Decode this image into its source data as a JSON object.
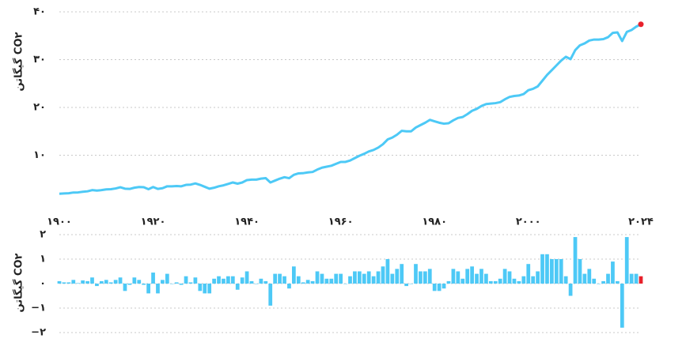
{
  "chart_data": [
    {
      "type": "line",
      "y_label": "گیگاتن CO۲",
      "color": "#4dc9f6",
      "end_marker_color": "#e8212b",
      "grid": true,
      "xlim": [
        1900,
        2024
      ],
      "ylim": [
        0,
        40
      ],
      "yticks": [
        {
          "value": 10,
          "label": "۱۰"
        },
        {
          "value": 20,
          "label": "۲۰"
        },
        {
          "value": 30,
          "label": "۳۰"
        },
        {
          "value": 40,
          "label": "۴۰"
        }
      ],
      "xticks": [
        {
          "value": 1900,
          "label": "۱۹۰۰"
        },
        {
          "value": 1920,
          "label": "۱۹۲۰"
        },
        {
          "value": 1940,
          "label": "۱۹۴۰"
        },
        {
          "value": 1960,
          "label": "۱۹۶۰"
        },
        {
          "value": 1980,
          "label": "۱۹۸۰"
        },
        {
          "value": 2000,
          "label": "۲۰۰۰"
        },
        {
          "value": 2024,
          "label": "۲۰۲۴"
        }
      ],
      "x": [
        1900,
        1901,
        1902,
        1903,
        1904,
        1905,
        1906,
        1907,
        1908,
        1909,
        1910,
        1911,
        1912,
        1913,
        1914,
        1915,
        1916,
        1917,
        1918,
        1919,
        1920,
        1921,
        1922,
        1923,
        1924,
        1925,
        1926,
        1927,
        1928,
        1929,
        1930,
        1931,
        1932,
        1933,
        1934,
        1935,
        1936,
        1937,
        1938,
        1939,
        1940,
        1941,
        1942,
        1943,
        1944,
        1945,
        1946,
        1947,
        1948,
        1949,
        1950,
        1951,
        1952,
        1953,
        1954,
        1955,
        1956,
        1957,
        1958,
        1959,
        1960,
        1961,
        1962,
        1963,
        1964,
        1965,
        1966,
        1967,
        1968,
        1969,
        1970,
        1971,
        1972,
        1973,
        1974,
        1975,
        1976,
        1977,
        1978,
        1979,
        1980,
        1981,
        1982,
        1983,
        1984,
        1985,
        1986,
        1987,
        1988,
        1989,
        1990,
        1991,
        1992,
        1993,
        1994,
        1995,
        1996,
        1997,
        1998,
        1999,
        2000,
        2001,
        2002,
        2003,
        2004,
        2005,
        2006,
        2007,
        2008,
        2009,
        2010,
        2011,
        2012,
        2013,
        2014,
        2015,
        2016,
        2017,
        2018,
        2019,
        2020,
        2021,
        2022,
        2023,
        2024
      ],
      "values": [
        1.95,
        2.0,
        2.05,
        2.2,
        2.22,
        2.35,
        2.45,
        2.7,
        2.6,
        2.7,
        2.85,
        2.9,
        3.05,
        3.3,
        3.0,
        2.95,
        3.2,
        3.35,
        3.3,
        2.9,
        3.35,
        2.95,
        3.1,
        3.5,
        3.5,
        3.55,
        3.5,
        3.8,
        3.85,
        4.1,
        3.8,
        3.4,
        3.0,
        3.2,
        3.5,
        3.7,
        4.0,
        4.3,
        4.05,
        4.3,
        4.8,
        4.9,
        4.9,
        5.1,
        5.2,
        4.3,
        4.7,
        5.1,
        5.4,
        5.2,
        5.9,
        6.2,
        6.25,
        6.4,
        6.5,
        7.0,
        7.4,
        7.6,
        7.8,
        8.2,
        8.6,
        8.6,
        8.9,
        9.4,
        9.9,
        10.3,
        10.8,
        11.1,
        11.6,
        12.3,
        13.3,
        13.7,
        14.3,
        15.1,
        15.0,
        15.0,
        15.8,
        16.3,
        16.8,
        17.4,
        17.1,
        16.8,
        16.6,
        16.7,
        17.3,
        17.8,
        18.0,
        18.6,
        19.3,
        19.7,
        20.3,
        20.7,
        20.8,
        20.9,
        21.1,
        21.7,
        22.2,
        22.4,
        22.5,
        22.8,
        23.6,
        23.9,
        24.4,
        25.6,
        26.8,
        27.8,
        28.8,
        29.8,
        30.6,
        30.1,
        32.0,
        33.0,
        33.4,
        34.0,
        34.2,
        34.2,
        34.3,
        34.7,
        35.6,
        35.7,
        33.9,
        35.8,
        36.2,
        36.9,
        37.4
      ]
    },
    {
      "type": "bar",
      "y_label": "گیگاتن CO۲",
      "color": "#4dc9f6",
      "highlight_color": "#e8212b",
      "grid": true,
      "xlim": [
        1900,
        2024
      ],
      "ylim": [
        -2,
        2
      ],
      "yticks": [
        {
          "value": -2,
          "label": "−۲"
        },
        {
          "value": -1,
          "label": "−۱"
        },
        {
          "value": 0,
          "label": "۰"
        },
        {
          "value": 1,
          "label": "۱"
        },
        {
          "value": 2,
          "label": "۲"
        }
      ],
      "x": [
        1900,
        1901,
        1902,
        1903,
        1904,
        1905,
        1906,
        1907,
        1908,
        1909,
        1910,
        1911,
        1912,
        1913,
        1914,
        1915,
        1916,
        1917,
        1918,
        1919,
        1920,
        1921,
        1922,
        1923,
        1924,
        1925,
        1926,
        1927,
        1928,
        1929,
        1930,
        1931,
        1932,
        1933,
        1934,
        1935,
        1936,
        1937,
        1938,
        1939,
        1940,
        1941,
        1942,
        1943,
        1944,
        1945,
        1946,
        1947,
        1948,
        1949,
        1950,
        1951,
        1952,
        1953,
        1954,
        1955,
        1956,
        1957,
        1958,
        1959,
        1960,
        1961,
        1962,
        1963,
        1964,
        1965,
        1966,
        1967,
        1968,
        1969,
        1970,
        1971,
        1972,
        1973,
        1974,
        1975,
        1976,
        1977,
        1978,
        1979,
        1980,
        1981,
        1982,
        1983,
        1984,
        1985,
        1986,
        1987,
        1988,
        1989,
        1990,
        1991,
        1992,
        1993,
        1994,
        1995,
        1996,
        1997,
        1998,
        1999,
        2000,
        2001,
        2002,
        2003,
        2004,
        2005,
        2006,
        2007,
        2008,
        2009,
        2010,
        2011,
        2012,
        2013,
        2014,
        2015,
        2016,
        2017,
        2018,
        2019,
        2020,
        2021,
        2022,
        2023,
        2024
      ],
      "values": [
        0.1,
        0.05,
        0.05,
        0.15,
        0.02,
        0.13,
        0.1,
        0.25,
        -0.1,
        0.1,
        0.15,
        0.05,
        0.15,
        0.25,
        -0.3,
        -0.05,
        0.25,
        0.15,
        -0.05,
        -0.4,
        0.45,
        -0.4,
        0.15,
        0.4,
        0,
        0.05,
        -0.05,
        0.3,
        0.05,
        0.25,
        -0.3,
        -0.4,
        -0.4,
        0.2,
        0.3,
        0.2,
        0.3,
        0.3,
        -0.25,
        0.25,
        0.5,
        0.1,
        0,
        0.2,
        0.1,
        -0.9,
        0.4,
        0.4,
        0.3,
        -0.2,
        0.7,
        0.3,
        0.05,
        0.15,
        0.1,
        0.5,
        0.4,
        0.2,
        0.2,
        0.4,
        0.4,
        0,
        0.3,
        0.5,
        0.5,
        0.4,
        0.5,
        0.3,
        0.5,
        0.7,
        1.0,
        0.4,
        0.6,
        0.8,
        -0.1,
        0,
        0.8,
        0.5,
        0.5,
        0.6,
        -0.3,
        -0.3,
        -0.2,
        0.1,
        0.6,
        0.5,
        0.2,
        0.6,
        0.7,
        0.4,
        0.6,
        0.4,
        0.1,
        0.1,
        0.2,
        0.6,
        0.5,
        0.2,
        0.1,
        0.3,
        0.8,
        0.3,
        0.5,
        1.2,
        1.2,
        1.0,
        1.0,
        1.0,
        0.3,
        -0.5,
        1.9,
        1.0,
        0.4,
        0.6,
        0.2,
        0,
        0.1,
        0.4,
        0.9,
        0.1,
        -1.8,
        1.9,
        0.4,
        0.4,
        0.3
      ]
    }
  ]
}
